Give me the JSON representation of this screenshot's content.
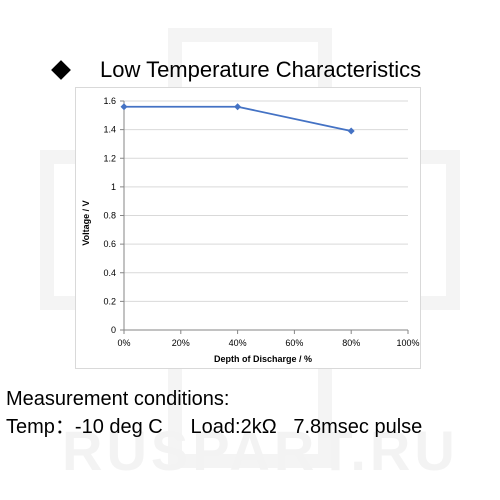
{
  "heading": {
    "text": "Low Temperature Characteristics"
  },
  "conditions": {
    "line1": "Measurement conditions:",
    "line2": "Temp：-10 deg C     Load:2kΩ   7.8msec pulse"
  },
  "watermark": {
    "text": "RUSPART.RU"
  },
  "colors": {
    "series": "#4472c4",
    "grid": "#d9d9d9",
    "axis": "#868686",
    "watermark": "#f3f3f3"
  },
  "chart_data": {
    "type": "line",
    "title": "",
    "xlabel": "Depth of Discharge / %",
    "ylabel": "Voltage  /  V",
    "x": [
      0,
      40,
      80
    ],
    "series": [
      {
        "values": [
          1.56,
          1.56,
          1.39
        ]
      }
    ],
    "xlim": [
      0,
      100
    ],
    "ylim": [
      0,
      1.6
    ],
    "xticks": [
      "0%",
      "20%",
      "40%",
      "60%",
      "80%",
      "100%"
    ],
    "yticks": [
      "0",
      "0.2",
      "0.4",
      "0.6",
      "0.8",
      "1",
      "1.2",
      "1.4",
      "1.6"
    ],
    "xtick_values": [
      0,
      20,
      40,
      60,
      80,
      100
    ],
    "ytick_values": [
      0,
      0.2,
      0.4,
      0.6,
      0.8,
      1.0,
      1.2,
      1.4,
      1.6
    ],
    "marker": "diamond",
    "grid": "horizontal",
    "legend": "none"
  }
}
